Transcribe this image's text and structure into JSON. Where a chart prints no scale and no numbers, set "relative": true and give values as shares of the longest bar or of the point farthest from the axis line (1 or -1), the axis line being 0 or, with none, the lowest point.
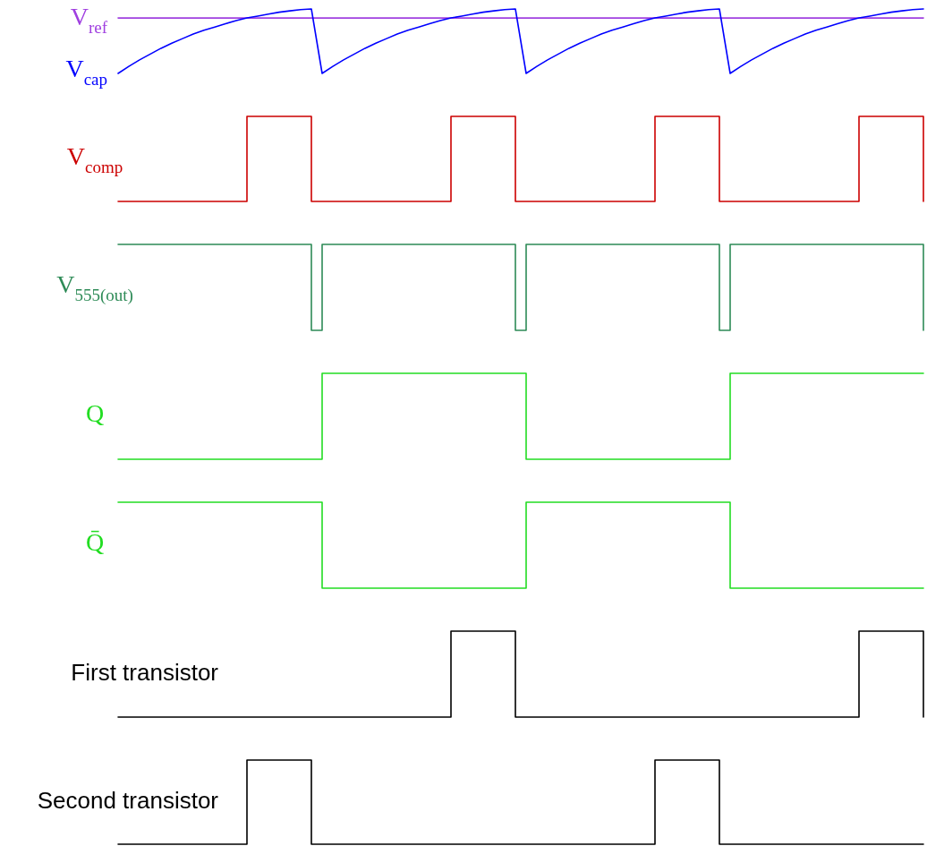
{
  "chart_data": [
    {
      "type": "line",
      "relative": true,
      "categories": [
        null,
        null,
        null,
        null,
        null,
        null,
        null,
        null,
        null,
        null,
        null,
        null,
        null,
        null,
        null,
        null,
        null,
        null,
        null,
        null,
        null,
        null,
        null,
        null,
        null,
        null,
        null,
        null,
        null,
        null,
        null,
        null,
        null,
        null,
        null,
        null,
        null,
        null,
        null,
        null,
        null,
        null,
        null,
        null,
        null,
        null,
        null,
        null,
        null,
        null,
        null,
        null,
        null,
        null,
        null,
        null,
        null,
        null,
        null,
        null,
        null,
        null,
        null,
        null,
        null,
        null,
        null,
        null,
        null,
        null,
        null,
        null,
        null,
        null,
        null,
        null
      ],
      "series": [
        {
          "name": "V$_{ref}$",
          "color": "#a040e0",
          "values": [
            0.86,
            0.86,
            0.86,
            0.86,
            0.86,
            0.86,
            0.86,
            0.86,
            0.86,
            0.86,
            0.86,
            0.86,
            0.86,
            0.86,
            0.86,
            0.86,
            0.86,
            0.86,
            0.86,
            0.86,
            0.86,
            0.86,
            0.86,
            0.86,
            0.86,
            0.86,
            0.86,
            0.86,
            0.86,
            0.86,
            0.86,
            0.86,
            0.86,
            0.86,
            0.86,
            0.86,
            0.86,
            0.86,
            0.86,
            0.86,
            0.86,
            0.86,
            0.86,
            0.86,
            0.86,
            0.86,
            0.86,
            0.86,
            0.86,
            0.86,
            0.86,
            0.86,
            0.86,
            0.86,
            0.86,
            0.86,
            0.86,
            0.86,
            0.86,
            0.86,
            0.86,
            0.86,
            0.86,
            0.86,
            0.86,
            0.86,
            0.86,
            0.86,
            0.86,
            0.86,
            0.86,
            0.86,
            0.86,
            0.86,
            0.86,
            0.86
          ]
        },
        {
          "name": "V$_{cap}$",
          "color": "#0000ff",
          "values": [
            0,
            0.11,
            0.21,
            0.3,
            0.39,
            0.47,
            0.54,
            0.61,
            0.67,
            0.72,
            0.77,
            0.82,
            0.86,
            0.89,
            0.92,
            0.95,
            0.97,
            0.99,
            1,
            0,
            0.11,
            0.21,
            0.3,
            0.39,
            0.47,
            0.54,
            0.61,
            0.67,
            0.72,
            0.77,
            0.82,
            0.86,
            0.89,
            0.92,
            0.95,
            0.97,
            0.99,
            1,
            0,
            0.11,
            0.21,
            0.3,
            0.39,
            0.47,
            0.54,
            0.61,
            0.67,
            0.72,
            0.77,
            0.82,
            0.86,
            0.89,
            0.92,
            0.95,
            0.97,
            0.99,
            1,
            0,
            0.11,
            0.21,
            0.3,
            0.39,
            0.47,
            0.54,
            0.61,
            0.67,
            0.72,
            0.77,
            0.82,
            0.86,
            0.89,
            0.92,
            0.95,
            0.97,
            0.99,
            1
          ]
        }
      ]
    },
    {
      "type": "step",
      "relative": true,
      "categories": [
        null,
        null,
        null,
        null,
        null,
        null,
        null,
        null,
        null,
        null,
        null,
        null,
        null,
        null,
        null,
        null,
        null,
        null,
        null,
        null,
        null,
        null,
        null,
        null,
        null,
        null,
        null,
        null,
        null,
        null,
        null,
        null,
        null,
        null,
        null,
        null,
        null,
        null,
        null,
        null,
        null,
        null,
        null,
        null,
        null,
        null,
        null,
        null,
        null,
        null,
        null,
        null,
        null,
        null,
        null,
        null,
        null,
        null,
        null,
        null,
        null,
        null,
        null,
        null,
        null,
        null,
        null,
        null,
        null,
        null,
        null,
        null,
        null,
        null,
        null,
        null
      ],
      "series": [
        {
          "name": "V$_{comp}$",
          "color": "#cc0000",
          "values": [
            0,
            0,
            0,
            0,
            0,
            0,
            0,
            0,
            0,
            0,
            0,
            0,
            1,
            1,
            1,
            1,
            1,
            1,
            0,
            0,
            0,
            0,
            0,
            0,
            0,
            0,
            0,
            0,
            0,
            0,
            0,
            1,
            1,
            1,
            1,
            1,
            1,
            0,
            0,
            0,
            0,
            0,
            0,
            0,
            0,
            0,
            0,
            0,
            0,
            0,
            1,
            1,
            1,
            1,
            1,
            1,
            0,
            0,
            0,
            0,
            0,
            0,
            0,
            0,
            0,
            0,
            0,
            0,
            0,
            1,
            1,
            1,
            1,
            1,
            1,
            0
          ]
        }
      ]
    },
    {
      "type": "step",
      "relative": true,
      "categories": [
        null,
        null,
        null,
        null,
        null,
        null,
        null,
        null,
        null,
        null,
        null,
        null,
        null,
        null,
        null,
        null,
        null,
        null,
        null,
        null,
        null,
        null,
        null,
        null,
        null,
        null,
        null,
        null,
        null,
        null,
        null,
        null,
        null,
        null,
        null,
        null,
        null,
        null,
        null,
        null,
        null,
        null,
        null,
        null,
        null,
        null,
        null,
        null,
        null,
        null,
        null,
        null,
        null,
        null,
        null,
        null,
        null,
        null,
        null,
        null,
        null,
        null,
        null,
        null,
        null,
        null,
        null,
        null,
        null,
        null,
        null,
        null,
        null,
        null,
        null,
        null
      ],
      "series": [
        {
          "name": "V$_{555(out)}$",
          "color": "#2e8b57",
          "values": [
            1,
            1,
            1,
            1,
            1,
            1,
            1,
            1,
            1,
            1,
            1,
            1,
            1,
            1,
            1,
            1,
            1,
            1,
            0,
            1,
            1,
            1,
            1,
            1,
            1,
            1,
            1,
            1,
            1,
            1,
            1,
            1,
            1,
            1,
            1,
            1,
            1,
            0,
            1,
            1,
            1,
            1,
            1,
            1,
            1,
            1,
            1,
            1,
            1,
            1,
            1,
            1,
            1,
            1,
            1,
            1,
            0,
            1,
            1,
            1,
            1,
            1,
            1,
            1,
            1,
            1,
            1,
            1,
            1,
            1,
            1,
            1,
            1,
            1,
            1,
            0
          ]
        }
      ]
    },
    {
      "type": "step",
      "relative": true,
      "categories": [
        null,
        null,
        null,
        null,
        null,
        null,
        null,
        null,
        null,
        null,
        null,
        null,
        null,
        null,
        null,
        null,
        null,
        null,
        null,
        null,
        null,
        null,
        null,
        null,
        null,
        null,
        null,
        null,
        null,
        null,
        null,
        null,
        null,
        null,
        null,
        null,
        null,
        null,
        null,
        null,
        null,
        null,
        null,
        null,
        null,
        null,
        null,
        null,
        null,
        null,
        null,
        null,
        null,
        null,
        null,
        null,
        null,
        null,
        null,
        null,
        null,
        null,
        null,
        null,
        null,
        null,
        null,
        null,
        null,
        null,
        null,
        null,
        null,
        null,
        null,
        null
      ],
      "series": [
        {
          "name": "Q",
          "color": "#22dd22",
          "values": [
            0,
            0,
            0,
            0,
            0,
            0,
            0,
            0,
            0,
            0,
            0,
            0,
            0,
            0,
            0,
            0,
            0,
            0,
            0,
            1,
            1,
            1,
            1,
            1,
            1,
            1,
            1,
            1,
            1,
            1,
            1,
            1,
            1,
            1,
            1,
            1,
            1,
            1,
            0,
            0,
            0,
            0,
            0,
            0,
            0,
            0,
            0,
            0,
            0,
            0,
            0,
            0,
            0,
            0,
            0,
            0,
            0,
            1,
            1,
            1,
            1,
            1,
            1,
            1,
            1,
            1,
            1,
            1,
            1,
            1,
            1,
            1,
            1,
            1,
            1,
            1
          ]
        }
      ]
    },
    {
      "type": "step",
      "relative": true,
      "categories": [
        null,
        null,
        null,
        null,
        null,
        null,
        null,
        null,
        null,
        null,
        null,
        null,
        null,
        null,
        null,
        null,
        null,
        null,
        null,
        null,
        null,
        null,
        null,
        null,
        null,
        null,
        null,
        null,
        null,
        null,
        null,
        null,
        null,
        null,
        null,
        null,
        null,
        null,
        null,
        null,
        null,
        null,
        null,
        null,
        null,
        null,
        null,
        null,
        null,
        null,
        null,
        null,
        null,
        null,
        null,
        null,
        null,
        null,
        null,
        null,
        null,
        null,
        null,
        null,
        null,
        null,
        null,
        null,
        null,
        null,
        null,
        null,
        null,
        null,
        null,
        null
      ],
      "series": [
        {
          "name": "Q̄",
          "color": "#22dd22",
          "values": [
            1,
            1,
            1,
            1,
            1,
            1,
            1,
            1,
            1,
            1,
            1,
            1,
            1,
            1,
            1,
            1,
            1,
            1,
            1,
            0,
            0,
            0,
            0,
            0,
            0,
            0,
            0,
            0,
            0,
            0,
            0,
            0,
            0,
            0,
            0,
            0,
            0,
            0,
            1,
            1,
            1,
            1,
            1,
            1,
            1,
            1,
            1,
            1,
            1,
            1,
            1,
            1,
            1,
            1,
            1,
            1,
            1,
            0,
            0,
            0,
            0,
            0,
            0,
            0,
            0,
            0,
            0,
            0,
            0,
            0,
            0,
            0,
            0,
            0,
            0,
            0
          ]
        }
      ]
    },
    {
      "type": "step",
      "relative": true,
      "categories": [
        null,
        null,
        null,
        null,
        null,
        null,
        null,
        null,
        null,
        null,
        null,
        null,
        null,
        null,
        null,
        null,
        null,
        null,
        null,
        null,
        null,
        null,
        null,
        null,
        null,
        null,
        null,
        null,
        null,
        null,
        null,
        null,
        null,
        null,
        null,
        null,
        null,
        null,
        null,
        null,
        null,
        null,
        null,
        null,
        null,
        null,
        null,
        null,
        null,
        null,
        null,
        null,
        null,
        null,
        null,
        null,
        null,
        null,
        null,
        null,
        null,
        null,
        null,
        null,
        null,
        null,
        null,
        null,
        null,
        null,
        null,
        null,
        null,
        null,
        null,
        null
      ],
      "series": [
        {
          "name": "First transistor",
          "color": "#000000",
          "values": [
            0,
            0,
            0,
            0,
            0,
            0,
            0,
            0,
            0,
            0,
            0,
            0,
            0,
            0,
            0,
            0,
            0,
            0,
            0,
            0,
            0,
            0,
            0,
            0,
            0,
            0,
            0,
            0,
            0,
            0,
            0,
            1,
            1,
            1,
            1,
            1,
            1,
            0,
            0,
            0,
            0,
            0,
            0,
            0,
            0,
            0,
            0,
            0,
            0,
            0,
            0,
            0,
            0,
            0,
            0,
            0,
            0,
            0,
            0,
            0,
            0,
            0,
            0,
            0,
            0,
            0,
            0,
            0,
            0,
            1,
            1,
            1,
            1,
            1,
            1,
            0
          ]
        }
      ]
    },
    {
      "type": "step",
      "relative": true,
      "categories": [
        null,
        null,
        null,
        null,
        null,
        null,
        null,
        null,
        null,
        null,
        null,
        null,
        null,
        null,
        null,
        null,
        null,
        null,
        null,
        null,
        null,
        null,
        null,
        null,
        null,
        null,
        null,
        null,
        null,
        null,
        null,
        null,
        null,
        null,
        null,
        null,
        null,
        null,
        null,
        null,
        null,
        null,
        null,
        null,
        null,
        null,
        null,
        null,
        null,
        null,
        null,
        null,
        null,
        null,
        null,
        null,
        null,
        null,
        null,
        null,
        null,
        null,
        null,
        null,
        null,
        null,
        null,
        null,
        null,
        null,
        null,
        null,
        null,
        null,
        null,
        null
      ],
      "series": [
        {
          "name": "Second transistor",
          "color": "#000000",
          "values": [
            0,
            0,
            0,
            0,
            0,
            0,
            0,
            0,
            0,
            0,
            0,
            0,
            1,
            1,
            1,
            1,
            1,
            1,
            0,
            0,
            0,
            0,
            0,
            0,
            0,
            0,
            0,
            0,
            0,
            0,
            0,
            0,
            0,
            0,
            0,
            0,
            0,
            0,
            0,
            0,
            0,
            0,
            0,
            0,
            0,
            0,
            0,
            0,
            0,
            0,
            1,
            1,
            1,
            1,
            1,
            1,
            0,
            0,
            0,
            0,
            0,
            0,
            0,
            0,
            0,
            0,
            0,
            0,
            0,
            0,
            0,
            0,
            0,
            0,
            0,
            0
          ]
        }
      ]
    }
  ]
}
